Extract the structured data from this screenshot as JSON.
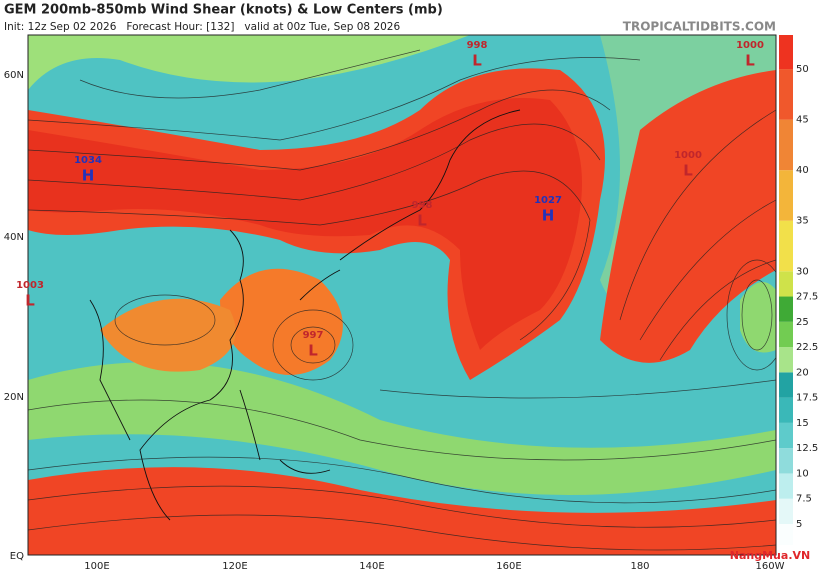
{
  "header": {
    "title": "GEM 200mb-850mb Wind Shear (knots) & Low Centers (mb)",
    "subtitle": "Init: 12z Sep 02 2026   Forecast Hour: [132]   valid at 00z Tue, Sep 08 2026",
    "site": "TROPICALTIDBITS.COM"
  },
  "latitude_labels": [
    "60N",
    "40N",
    "20N",
    "EQ"
  ],
  "longitude_labels": [
    "100E",
    "120E",
    "140E",
    "160E",
    "180",
    "160W"
  ],
  "colorbar_ticks": [
    5,
    7.5,
    10,
    12.5,
    15,
    17.5,
    20,
    22.5,
    25,
    27.5,
    30,
    35,
    40,
    45,
    50
  ],
  "centers": [
    {
      "letter": "L",
      "pressure": 998
    },
    {
      "letter": "L",
      "pressure": 1000
    },
    {
      "letter": "H",
      "pressure": 1034
    },
    {
      "letter": "L",
      "pressure": 1000
    },
    {
      "letter": "L",
      "pressure": 998
    },
    {
      "letter": "H",
      "pressure": 1027
    },
    {
      "letter": "L",
      "pressure": 1003
    },
    {
      "letter": "L",
      "pressure": 997
    }
  ],
  "watermark": "NangMua.VN"
}
